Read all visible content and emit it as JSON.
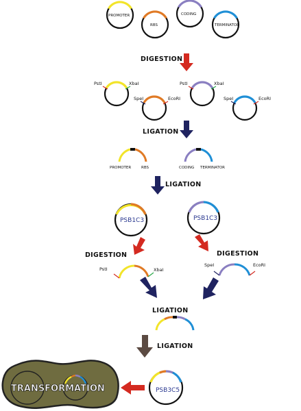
{
  "colors": {
    "promoter": "#f2e42a",
    "rbs": "#e07a25",
    "coding": "#8a7fc1",
    "terminator": "#1f8fd6",
    "backbone": "#111111",
    "red_arrow": "#d42a20",
    "navy_arrow": "#1f2360",
    "brown_arrow": "#5b4a42",
    "cell_fill": "#6f6c40",
    "cell_border": "#222222"
  },
  "parts": {
    "promoter": "PROMOTER",
    "rbs": "RBS",
    "coding": "CODING",
    "terminator": "TERMINATOR"
  },
  "steps": {
    "digestion_1": "DIGESTION",
    "ligation_1": "LIGATION",
    "ligation_2": "LIGATION",
    "digestion_left": "DIGESTION",
    "digestion_right": "DIGESTION",
    "ligation_3": "LIGATION",
    "ligation_4": "LIGATION"
  },
  "sites": {
    "pstI": "PstI",
    "xbaI": "XbaI",
    "speI": "SpeI",
    "ecoRI": "EcoRI"
  },
  "vectors": {
    "psb1c3_left": "PSB1C3",
    "psb1c3_right": "PSB1C3",
    "psb3c5": "PSB3C5"
  },
  "transformation": "TRANSFORMATION"
}
